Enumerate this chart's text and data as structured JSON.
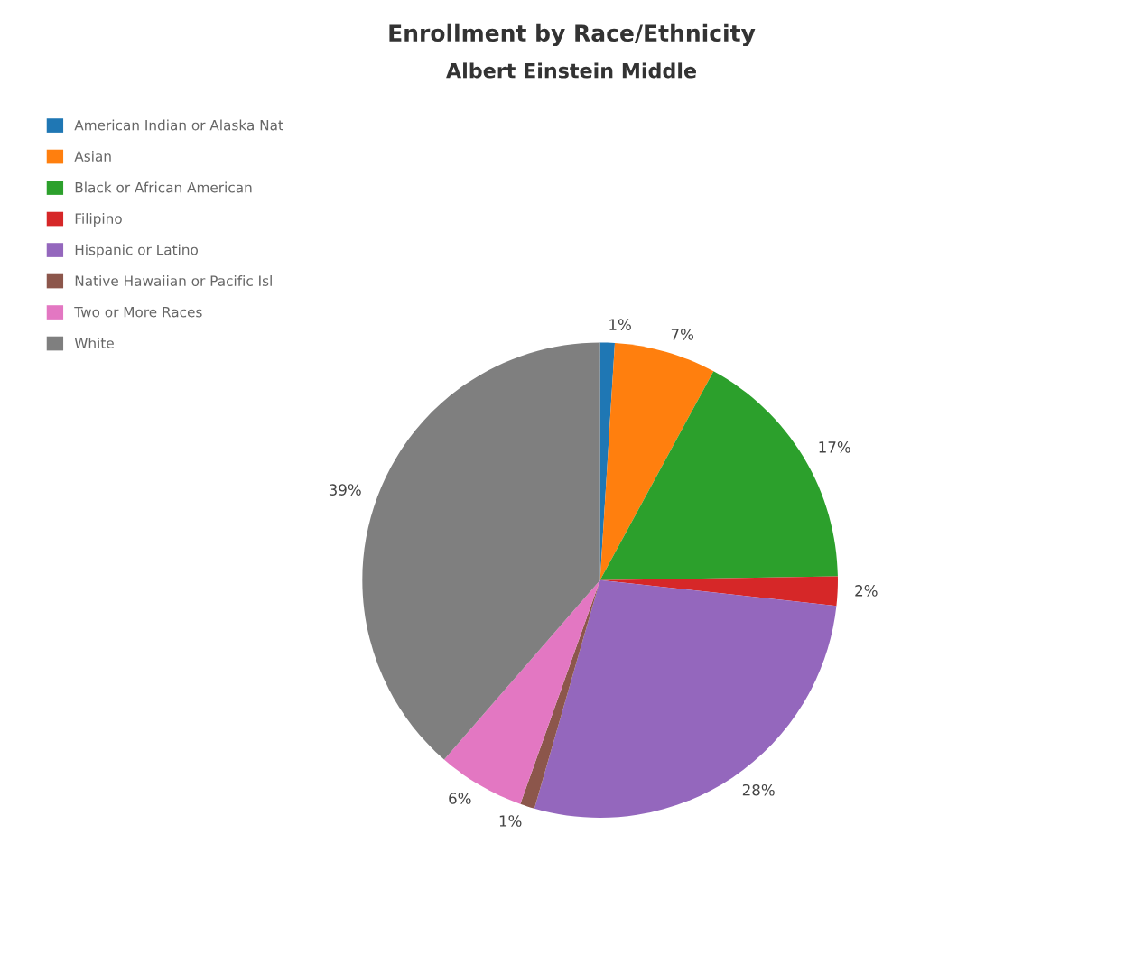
{
  "chart_data": {
    "type": "pie",
    "title": "Enrollment by Race/Ethnicity",
    "subtitle": "Albert Einstein Middle",
    "categories": [
      "American Indian or Alaska Nat",
      "Asian",
      "Black or African American",
      "Filipino",
      "Hispanic or Latino",
      "Native Hawaiian or Pacific Isl",
      "Two or More Races",
      "White"
    ],
    "values": [
      1,
      7,
      17,
      2,
      28,
      1,
      6,
      39
    ],
    "value_labels": [
      "1%",
      "7%",
      "17%",
      "2%",
      "28%",
      "1%",
      "6%",
      "39%"
    ],
    "colors": [
      "#1f77b4",
      "#ff7f0e",
      "#2ca02c",
      "#d62728",
      "#9467bd",
      "#8c564b",
      "#e377c2",
      "#7f7f7f"
    ],
    "legend": "top left"
  }
}
